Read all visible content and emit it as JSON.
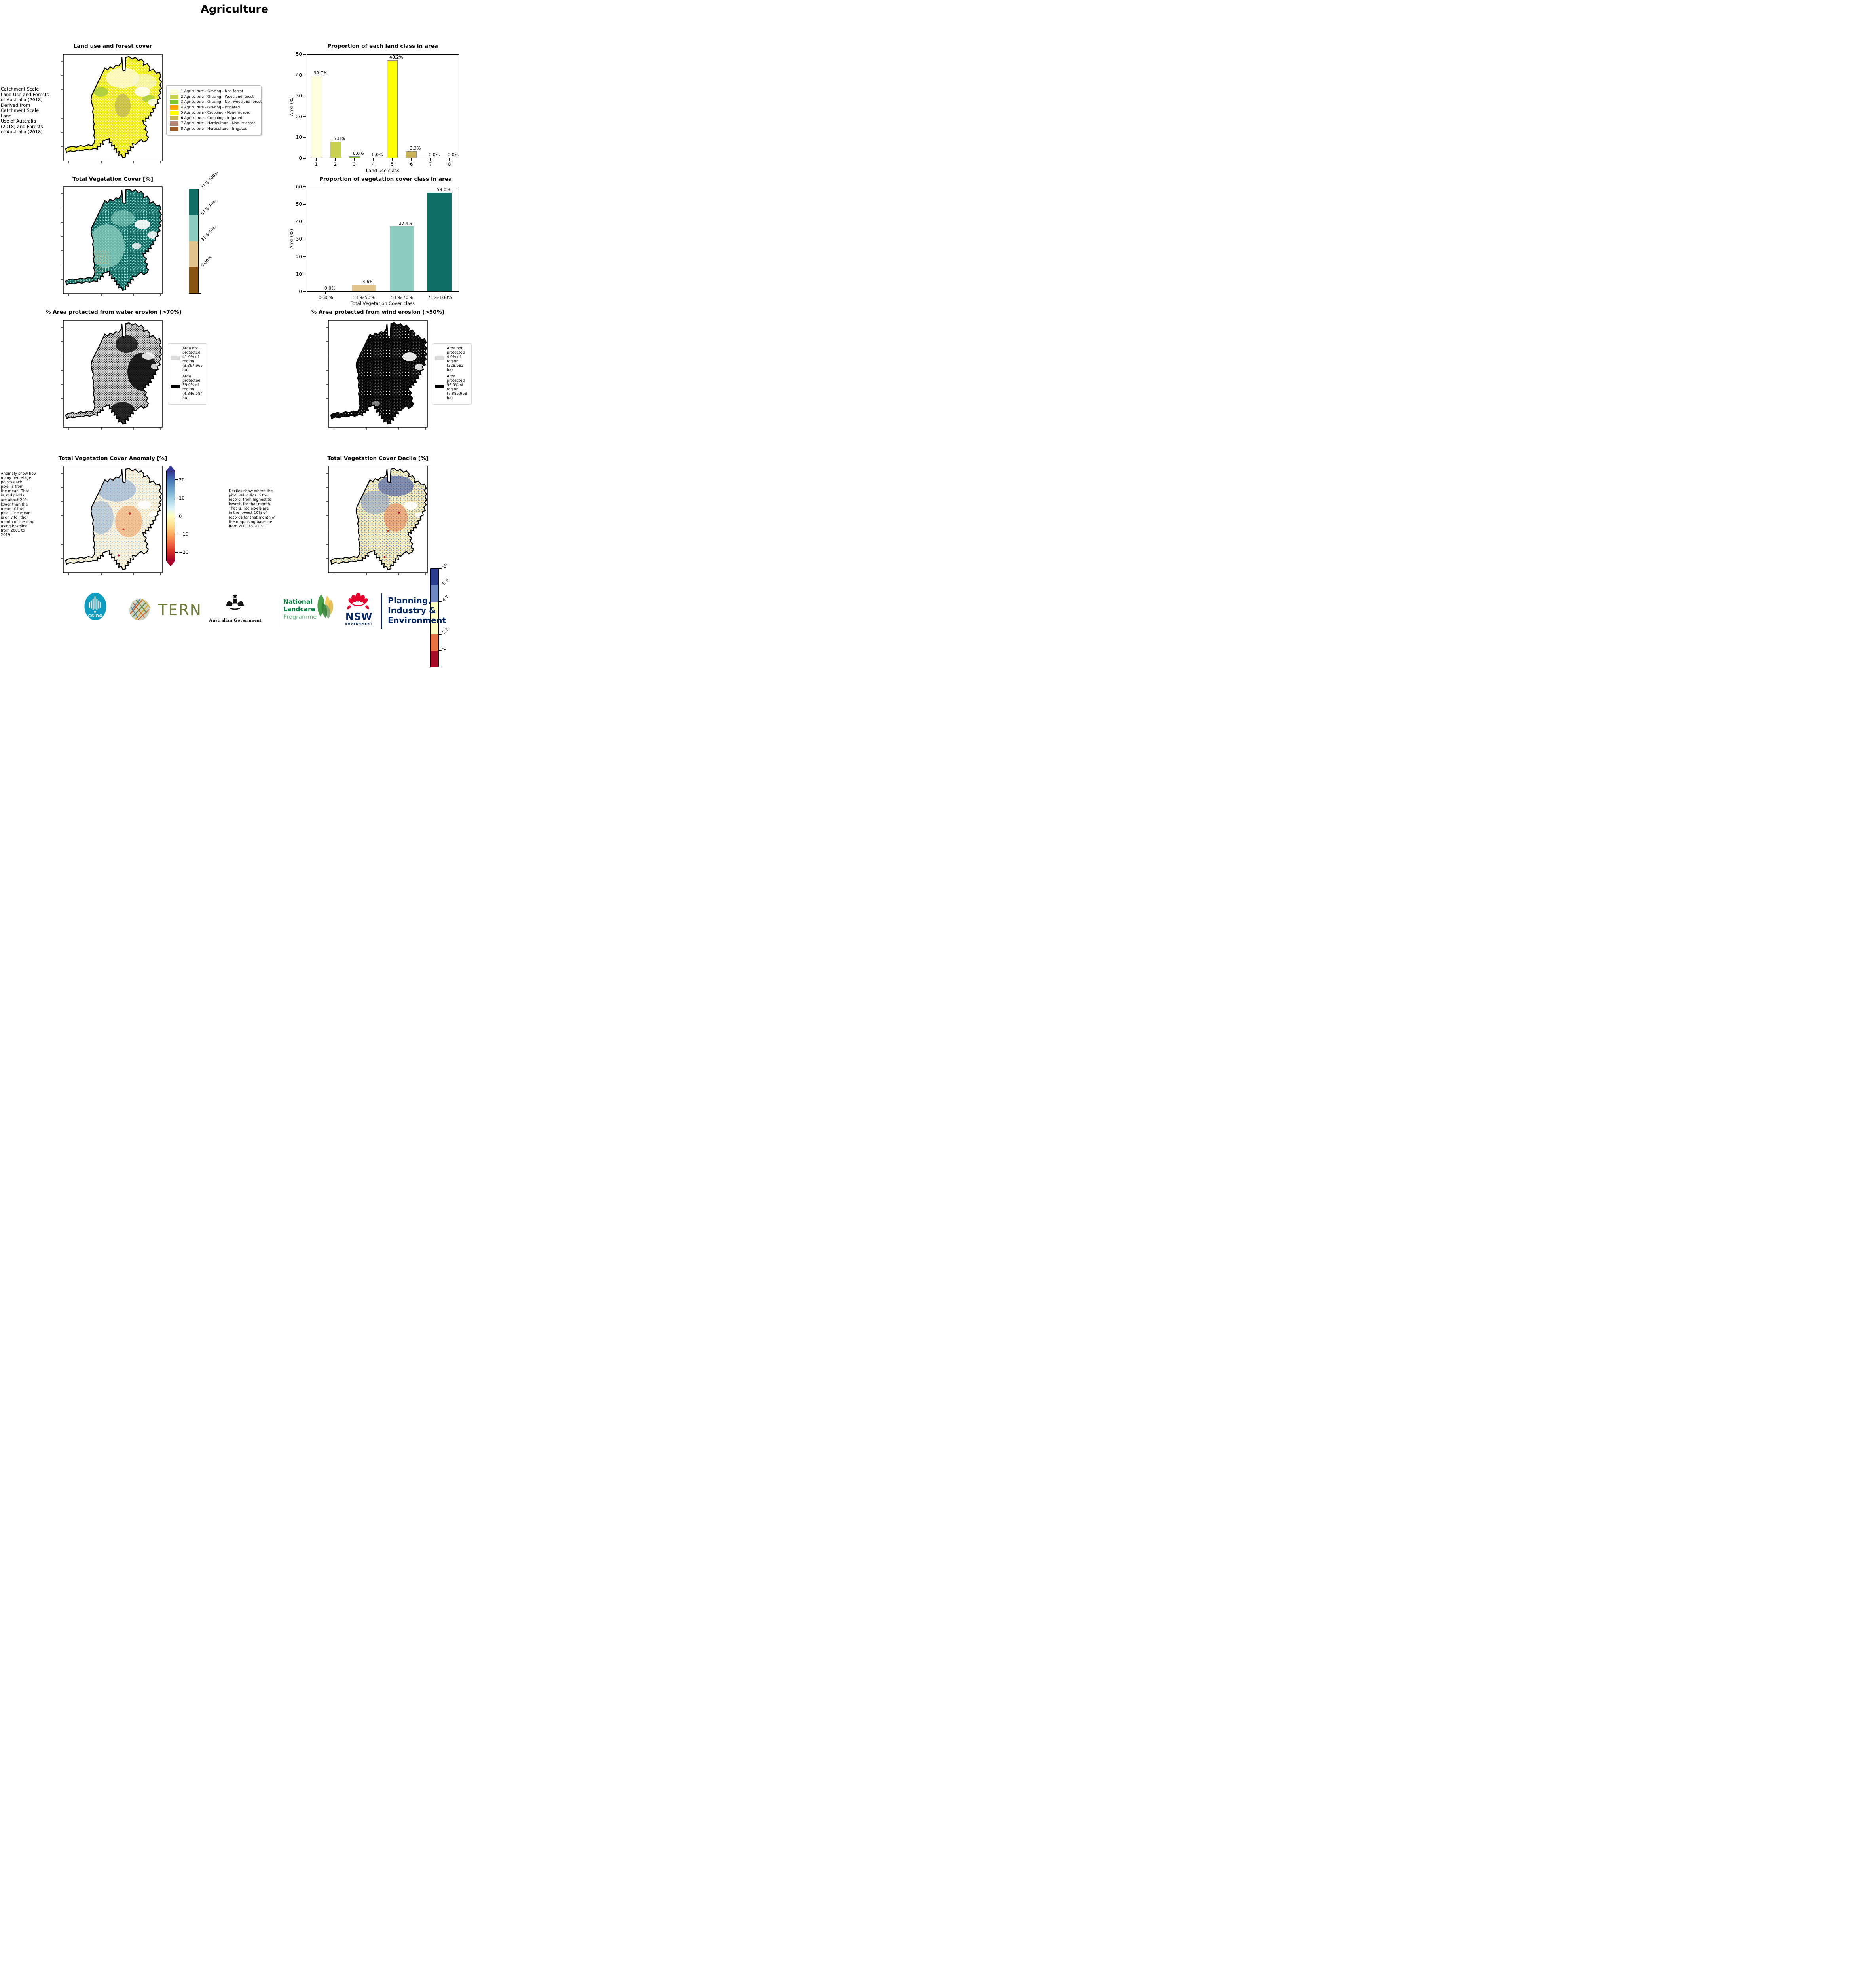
{
  "page_title": "Agriculture",
  "notes": {
    "land_use_source": " Catchment Scale\nLand Use and Forests\nof Australia (2018)\nDerived from\nCatchment Scale Land\nUse of Australia\n(2018) and Forests\nof Australia (2018)",
    "anomaly": "Anomaly show how\nmany percetage\npoints each\npixel is from\nthe mean. That\nis, red pixels\nare about 20%\nlower than the\nmean of that\npixel. The mean\nis only for the\nmonth of the map\nusing baseline\nfrom 2001 to\n2019.",
    "deciles": "Deciles show where the\npixel value lies in the\nrecord, from highest to\nlowest, for that month.\nThat is, red pixels are\nin the lowest 10% of\nrecords for that month of\nthe map using baseline\nfrom 2001 to 2019."
  },
  "maps": {
    "land_use": {
      "title": "Land use and forest cover"
    },
    "veg_cover": {
      "title": "Total Vegetation Cover [%]"
    },
    "water_erosion": {
      "title": "% Area protected from water erosion (>70%)"
    },
    "wind_erosion": {
      "title": "% Area protected from wind erosion (>50%)"
    },
    "anomaly": {
      "title": "Total Vegetation Cover Anomaly [%]"
    },
    "decile": {
      "title": "Total Vegetation Cover Decile [%]"
    }
  },
  "land_use_legend": [
    {
      "color": "#FFFFE0",
      "label": "1 Agriculture - Grazing - Non forest"
    },
    {
      "color": "#C8D24E",
      "label": "2 Agriculture - Grazing - Woodland forest"
    },
    {
      "color": "#7DC62E",
      "label": "3 Agriculture - Grazing - Non-woodland forest"
    },
    {
      "color": "#FFA500",
      "label": "4 Agriculture - Grazing - Irrigated"
    },
    {
      "color": "#FFFF00",
      "label": "5 Agriculture - Cropping - Non-irrigated"
    },
    {
      "color": "#C9B45A",
      "label": "6 Agriculture - Cropping - Irrigated"
    },
    {
      "color": "#B0846E",
      "label": "7 Agriculture - Horticulture - Non-irrigated"
    },
    {
      "color": "#9E5B28",
      "label": "8 Agriculture - Horticulture - Irrigated"
    }
  ],
  "veg_colorbar": [
    {
      "color": "#0F6E66",
      "label": "71%-100%"
    },
    {
      "color": "#8BCDC1",
      "label": "51%-70%"
    },
    {
      "color": "#E0C489",
      "label": "31%-50%"
    },
    {
      "color": "#8A5412",
      "label": "0-30%"
    }
  ],
  "decile_colorbar": [
    {
      "color": "#2C3C8E",
      "label": "10",
      "flex": 1
    },
    {
      "color": "#6E88C3",
      "label": "8-9",
      "flex": 1
    },
    {
      "color": "#FEFEC0",
      "label": "4-7",
      "flex": 2
    },
    {
      "color": "#E87242",
      "label": "2-3",
      "flex": 1
    },
    {
      "color": "#A80C26",
      "label": "1",
      "flex": 1
    }
  ],
  "anomaly_colorbar_ticks": [
    "20",
    "10",
    "0",
    "−10",
    "−20"
  ],
  "erosion_legends": {
    "water": [
      {
        "color": "#D9D9D9",
        "label": "Area not\nprotected\n41.0% of\nregion\n(3,367,965\nha)"
      },
      {
        "color": "#000000",
        "label": "Area\nprotected\n59.0% of\nregion\n(4,846,584\nha)"
      }
    ],
    "wind": [
      {
        "color": "#D9D9D9",
        "label": "Area not\nprotected\n4.0% of\nregion\n(328,582\nha)"
      },
      {
        "color": "#000000",
        "label": "Area\nprotected\n96.0% of\nregion\n(7,885,968\nha)"
      }
    ]
  },
  "chart_data": [
    {
      "type": "bar",
      "title": "Proportion of each land class in area",
      "xlabel": "Land use class",
      "ylabel": "Area (%)",
      "ylim": [
        0,
        50
      ],
      "grid": false,
      "legend_position": "none",
      "yticks_desc": [
        "50",
        "40",
        "30",
        "20",
        "10",
        "0"
      ],
      "categories": [
        "1",
        "2",
        "3",
        "4",
        "5",
        "6",
        "7",
        "8"
      ],
      "bars": [
        {
          "category": "1",
          "value": 39.7,
          "label": "39.7%",
          "color": "#FFFFE0"
        },
        {
          "category": "2",
          "value": 7.8,
          "label": "7.8%",
          "color": "#C8D24E"
        },
        {
          "category": "3",
          "value": 0.8,
          "label": "0.8%",
          "color": "#7DC62E"
        },
        {
          "category": "4",
          "value": 0.0,
          "label": "0.0%",
          "color": "#FFA500"
        },
        {
          "category": "5",
          "value": 48.2,
          "label": "48.2%",
          "color": "#FFFF00"
        },
        {
          "category": "6",
          "value": 3.3,
          "label": "3.3%",
          "color": "#C9B45A"
        },
        {
          "category": "7",
          "value": 0.0,
          "label": "0.0%",
          "color": "#B0846E"
        },
        {
          "category": "8",
          "value": 0.0,
          "label": "0.0%",
          "color": "#9E5B28"
        }
      ]
    },
    {
      "type": "bar",
      "title": "Proportion of vegetation cover class in area",
      "xlabel": "Total Vegetation Cover class",
      "ylabel": "Area (%)",
      "ylim": [
        0,
        60
      ],
      "grid": false,
      "legend_position": "none",
      "yticks_desc": [
        "60",
        "50",
        "40",
        "30",
        "20",
        "10",
        "0"
      ],
      "categories": [
        "0-30%",
        "31%-50%",
        "51%-70%",
        "71%-100%"
      ],
      "bars": [
        {
          "category": "0-30%",
          "value": 0.0,
          "label": "0.0%",
          "color": "#E0C489"
        },
        {
          "category": "31%-50%",
          "value": 3.6,
          "label": "3.6%",
          "color": "#E0C489"
        },
        {
          "category": "51%-70%",
          "value": 37.4,
          "label": "37.4%",
          "color": "#8BCDC1"
        },
        {
          "category": "71%-100%",
          "value": 59.0,
          "label": "59.0%",
          "color": "#0F6E66"
        }
      ]
    }
  ],
  "footer": {
    "csiro_label": "CSIRO",
    "tern_label": "TERN",
    "aus_gov_label": "Australian Government",
    "landcare_line1": "National",
    "landcare_line2": "Landcare",
    "landcare_line3": "Programme",
    "nsw_label": "NSW",
    "nsw_sub": "GOVERNMENT",
    "dpie_line1": "Planning,",
    "dpie_line2": "Industry &",
    "dpie_line3": "Environment"
  }
}
